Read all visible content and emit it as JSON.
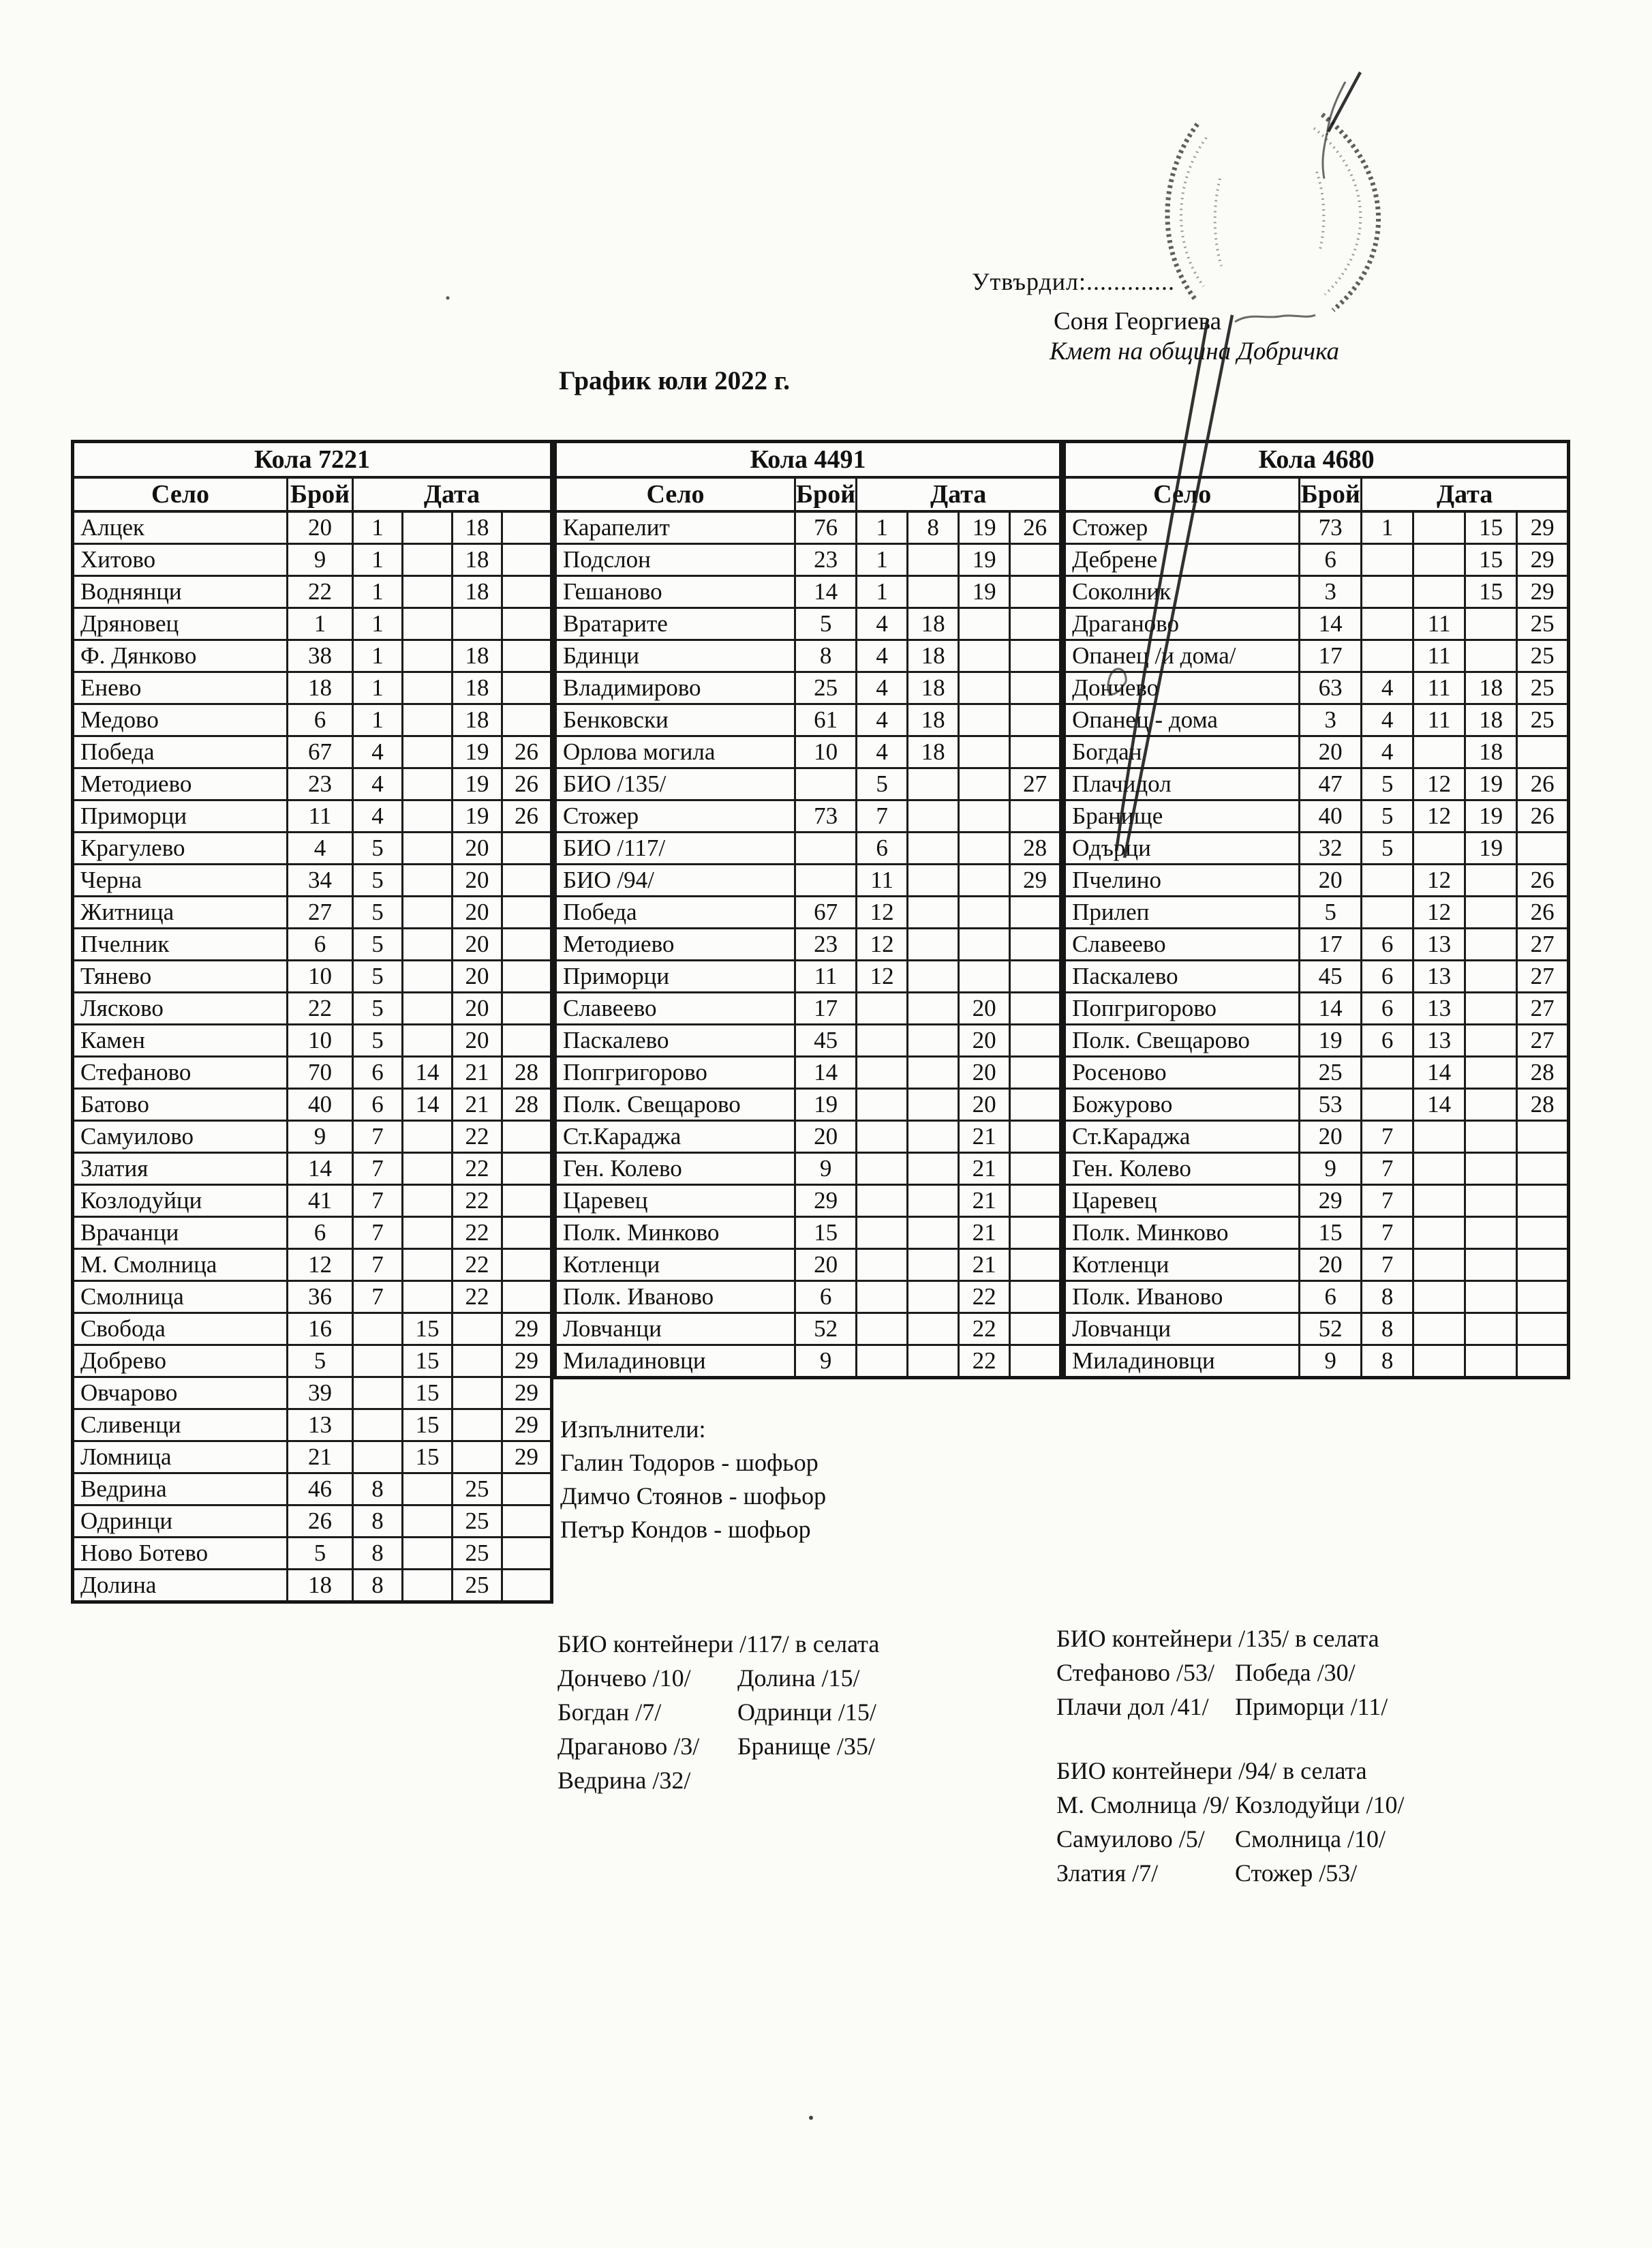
{
  "header": {
    "approve_label": "Утвърдил:.............",
    "approver_name": "Соня Георгиева",
    "approver_title": "Кмет  на община Добричка",
    "title": "График юли 2022 г."
  },
  "colors": {
    "paper": "#fbfbf8",
    "ink": "#111111",
    "table_border": "#1c1c1c"
  },
  "tables": [
    {
      "car": "Кола 7221",
      "columns": {
        "village": "Село",
        "count": "Брой",
        "date": "Дата"
      },
      "rows": [
        {
          "village": "Алцек",
          "count": "20",
          "dates": [
            "1",
            "",
            "18",
            ""
          ]
        },
        {
          "village": "Хитово",
          "count": "9",
          "dates": [
            "1",
            "",
            "18",
            ""
          ]
        },
        {
          "village": "Воднянци",
          "count": "22",
          "dates": [
            "1",
            "",
            "18",
            ""
          ]
        },
        {
          "village": "Дряновец",
          "count": "1",
          "dates": [
            "1",
            "",
            "",
            ""
          ]
        },
        {
          "village": "Ф. Дянково",
          "count": "38",
          "dates": [
            "1",
            "",
            "18",
            ""
          ]
        },
        {
          "village": "Енево",
          "count": "18",
          "dates": [
            "1",
            "",
            "18",
            ""
          ]
        },
        {
          "village": "Медово",
          "count": "6",
          "dates": [
            "1",
            "",
            "18",
            ""
          ]
        },
        {
          "village": "Победа",
          "count": "67",
          "dates": [
            "4",
            "",
            "19",
            "26"
          ]
        },
        {
          "village": "Методиево",
          "count": "23",
          "dates": [
            "4",
            "",
            "19",
            "26"
          ]
        },
        {
          "village": "Приморци",
          "count": "11",
          "dates": [
            "4",
            "",
            "19",
            "26"
          ]
        },
        {
          "village": "Крагулево",
          "count": "4",
          "dates": [
            "5",
            "",
            "20",
            ""
          ]
        },
        {
          "village": "Черна",
          "count": "34",
          "dates": [
            "5",
            "",
            "20",
            ""
          ]
        },
        {
          "village": "Житница",
          "count": "27",
          "dates": [
            "5",
            "",
            "20",
            ""
          ]
        },
        {
          "village": "Пчелник",
          "count": "6",
          "dates": [
            "5",
            "",
            "20",
            ""
          ]
        },
        {
          "village": "Тянево",
          "count": "10",
          "dates": [
            "5",
            "",
            "20",
            ""
          ]
        },
        {
          "village": "Лясково",
          "count": "22",
          "dates": [
            "5",
            "",
            "20",
            ""
          ]
        },
        {
          "village": "Камен",
          "count": "10",
          "dates": [
            "5",
            "",
            "20",
            ""
          ]
        },
        {
          "village": "Стефаново",
          "count": "70",
          "dates": [
            "6",
            "14",
            "21",
            "28"
          ]
        },
        {
          "village": "Батово",
          "count": "40",
          "dates": [
            "6",
            "14",
            "21",
            "28"
          ]
        },
        {
          "village": "Самуилово",
          "count": "9",
          "dates": [
            "7",
            "",
            "22",
            ""
          ]
        },
        {
          "village": "Златия",
          "count": "14",
          "dates": [
            "7",
            "",
            "22",
            ""
          ]
        },
        {
          "village": "Козлодуйци",
          "count": "41",
          "dates": [
            "7",
            "",
            "22",
            ""
          ]
        },
        {
          "village": "Врачанци",
          "count": "6",
          "dates": [
            "7",
            "",
            "22",
            ""
          ]
        },
        {
          "village": "М. Смолница",
          "count": "12",
          "dates": [
            "7",
            "",
            "22",
            ""
          ]
        },
        {
          "village": "Смолница",
          "count": "36",
          "dates": [
            "7",
            "",
            "22",
            ""
          ]
        },
        {
          "village": "Свобода",
          "count": "16",
          "dates": [
            "",
            "15",
            "",
            "29"
          ]
        },
        {
          "village": "Добрево",
          "count": "5",
          "dates": [
            "",
            "15",
            "",
            "29"
          ]
        },
        {
          "village": "Овчарово",
          "count": "39",
          "dates": [
            "",
            "15",
            "",
            "29"
          ]
        },
        {
          "village": "Сливенци",
          "count": "13",
          "dates": [
            "",
            "15",
            "",
            "29"
          ]
        },
        {
          "village": "Ломница",
          "count": "21",
          "dates": [
            "",
            "15",
            "",
            "29"
          ]
        },
        {
          "village": "Ведрина",
          "count": "46",
          "dates": [
            "8",
            "",
            "25",
            ""
          ]
        },
        {
          "village": "Одринци",
          "count": "26",
          "dates": [
            "8",
            "",
            "25",
            ""
          ]
        },
        {
          "village": "Ново Ботево",
          "count": "5",
          "dates": [
            "8",
            "",
            "25",
            ""
          ]
        },
        {
          "village": "Долина",
          "count": "18",
          "dates": [
            "8",
            "",
            "25",
            ""
          ]
        }
      ]
    },
    {
      "car": "Кола 4491",
      "columns": {
        "village": "Село",
        "count": "Брой",
        "date": "Дата"
      },
      "rows": [
        {
          "village": "Карапелит",
          "count": "76",
          "dates": [
            "1",
            "8",
            "19",
            "26"
          ]
        },
        {
          "village": "Подслон",
          "count": "23",
          "dates": [
            "1",
            "",
            "19",
            ""
          ]
        },
        {
          "village": "Гешаново",
          "count": "14",
          "dates": [
            "1",
            "",
            "19",
            ""
          ]
        },
        {
          "village": "Вратарите",
          "count": "5",
          "dates": [
            "4",
            "18",
            "",
            ""
          ]
        },
        {
          "village": "Бдинци",
          "count": "8",
          "dates": [
            "4",
            "18",
            "",
            ""
          ]
        },
        {
          "village": "Владимирово",
          "count": "25",
          "dates": [
            "4",
            "18",
            "",
            ""
          ]
        },
        {
          "village": "Бенковски",
          "count": "61",
          "dates": [
            "4",
            "18",
            "",
            ""
          ]
        },
        {
          "village": "Орлова могила",
          "count": "10",
          "dates": [
            "4",
            "18",
            "",
            ""
          ]
        },
        {
          "village": "БИО /135/",
          "count": "",
          "dates": [
            "5",
            "",
            "",
            "27"
          ]
        },
        {
          "village": "Стожер",
          "count": "73",
          "dates": [
            "7",
            "",
            "",
            ""
          ]
        },
        {
          "village": "БИО /117/",
          "count": "",
          "dates": [
            "6",
            "",
            "",
            "28"
          ]
        },
        {
          "village": "БИО /94/",
          "count": "",
          "dates": [
            "11",
            "",
            "",
            "29"
          ]
        },
        {
          "village": "Победа",
          "count": "67",
          "dates": [
            "12",
            "",
            "",
            ""
          ]
        },
        {
          "village": "Методиево",
          "count": "23",
          "dates": [
            "12",
            "",
            "",
            ""
          ]
        },
        {
          "village": "Приморци",
          "count": "11",
          "dates": [
            "12",
            "",
            "",
            ""
          ]
        },
        {
          "village": "Славеево",
          "count": "17",
          "dates": [
            "",
            "",
            "20",
            ""
          ]
        },
        {
          "village": "Паскалево",
          "count": "45",
          "dates": [
            "",
            "",
            "20",
            ""
          ]
        },
        {
          "village": "Попгригорово",
          "count": "14",
          "dates": [
            "",
            "",
            "20",
            ""
          ]
        },
        {
          "village": "Полк. Свещарово",
          "count": "19",
          "dates": [
            "",
            "",
            "20",
            ""
          ]
        },
        {
          "village": "Ст.Караджа",
          "count": "20",
          "dates": [
            "",
            "",
            "21",
            ""
          ]
        },
        {
          "village": "Ген. Колево",
          "count": "9",
          "dates": [
            "",
            "",
            "21",
            ""
          ]
        },
        {
          "village": "Царевец",
          "count": "29",
          "dates": [
            "",
            "",
            "21",
            ""
          ]
        },
        {
          "village": "Полк. Минково",
          "count": "15",
          "dates": [
            "",
            "",
            "21",
            ""
          ]
        },
        {
          "village": "Котленци",
          "count": "20",
          "dates": [
            "",
            "",
            "21",
            ""
          ]
        },
        {
          "village": "Полк. Иваново",
          "count": "6",
          "dates": [
            "",
            "",
            "22",
            ""
          ]
        },
        {
          "village": "Ловчанци",
          "count": "52",
          "dates": [
            "",
            "",
            "22",
            ""
          ]
        },
        {
          "village": "Миладиновци",
          "count": "9",
          "dates": [
            "",
            "",
            "22",
            ""
          ]
        }
      ]
    },
    {
      "car": "Кола 4680",
      "columns": {
        "village": "Село",
        "count": "Брой",
        "date": "Дата"
      },
      "rows": [
        {
          "village": "Стожер",
          "count": "73",
          "dates": [
            "1",
            "",
            "15",
            "29"
          ]
        },
        {
          "village": "Дебрене",
          "count": "6",
          "dates": [
            "",
            "",
            "15",
            "29"
          ]
        },
        {
          "village": "Соколник",
          "count": "3",
          "dates": [
            "",
            "",
            "15",
            "29"
          ]
        },
        {
          "village": "Драганово",
          "count": "14",
          "dates": [
            "",
            "11",
            "",
            "25"
          ]
        },
        {
          "village": "Опанец /и дома/",
          "count": "17",
          "dates": [
            "",
            "11",
            "",
            "25"
          ]
        },
        {
          "village": "Дончево",
          "count": "63",
          "dates": [
            "4",
            "11",
            "18",
            "25"
          ]
        },
        {
          "village": "Опанец - дома",
          "count": "3",
          "dates": [
            "4",
            "11",
            "18",
            "25"
          ]
        },
        {
          "village": "Богдан",
          "count": "20",
          "dates": [
            "4",
            "",
            "18",
            ""
          ]
        },
        {
          "village": "Плачидол",
          "count": "47",
          "dates": [
            "5",
            "12",
            "19",
            "26"
          ]
        },
        {
          "village": "Бранище",
          "count": "40",
          "dates": [
            "5",
            "12",
            "19",
            "26"
          ]
        },
        {
          "village": "Одърци",
          "count": "32",
          "dates": [
            "5",
            "",
            "19",
            ""
          ]
        },
        {
          "village": "Пчелино",
          "count": "20",
          "dates": [
            "",
            "12",
            "",
            "26"
          ]
        },
        {
          "village": "Прилеп",
          "count": "5",
          "dates": [
            "",
            "12",
            "",
            "26"
          ]
        },
        {
          "village": "Славеево",
          "count": "17",
          "dates": [
            "6",
            "13",
            "",
            "27"
          ]
        },
        {
          "village": "Паскалево",
          "count": "45",
          "dates": [
            "6",
            "13",
            "",
            "27"
          ]
        },
        {
          "village": "Попгригорово",
          "count": "14",
          "dates": [
            "6",
            "13",
            "",
            "27"
          ]
        },
        {
          "village": "Полк. Свещарово",
          "count": "19",
          "dates": [
            "6",
            "13",
            "",
            "27"
          ]
        },
        {
          "village": "Росеново",
          "count": "25",
          "dates": [
            "",
            "14",
            "",
            "28"
          ]
        },
        {
          "village": "Божурово",
          "count": "53",
          "dates": [
            "",
            "14",
            "",
            "28"
          ]
        },
        {
          "village": "Ст.Караджа",
          "count": "20",
          "dates": [
            "7",
            "",
            "",
            ""
          ]
        },
        {
          "village": "Ген. Колево",
          "count": "9",
          "dates": [
            "7",
            "",
            "",
            ""
          ]
        },
        {
          "village": "Царевец",
          "count": "29",
          "dates": [
            "7",
            "",
            "",
            ""
          ]
        },
        {
          "village": "Полк. Минково",
          "count": "15",
          "dates": [
            "7",
            "",
            "",
            ""
          ]
        },
        {
          "village": "Котленци",
          "count": "20",
          "dates": [
            "7",
            "",
            "",
            ""
          ]
        },
        {
          "village": "Полк. Иваново",
          "count": "6",
          "dates": [
            "8",
            "",
            "",
            ""
          ]
        },
        {
          "village": "Ловчанци",
          "count": "52",
          "dates": [
            "8",
            "",
            "",
            ""
          ]
        },
        {
          "village": "Миладиновци",
          "count": "9",
          "dates": [
            "8",
            "",
            "",
            ""
          ]
        }
      ]
    }
  ],
  "executors": {
    "title": "Изпълнители:",
    "names": [
      "Галин Тодоров - шофьор",
      "Димчо Стоянов - шофьор",
      "Петър Кондов - шофьор"
    ]
  },
  "bio_sections": [
    {
      "title": "БИО контейнери /117/ в селата",
      "pairs": [
        [
          "Дончево /10/",
          "Долина /15/"
        ],
        [
          "Богдан /7/",
          "Одринци /15/"
        ],
        [
          "Драганово /3/",
          "Бранище /35/"
        ],
        [
          "Ведрина /32/",
          ""
        ]
      ]
    },
    {
      "title": "БИО контейнери /135/ в селата",
      "pairs": [
        [
          "Стефаново /53/",
          "Победа /30/"
        ],
        [
          "Плачи дол /41/",
          "Приморци /11/"
        ]
      ]
    },
    {
      "title": "БИО контейнери /94/ в селата",
      "pairs": [
        [
          "М. Смолница /9/",
          "Козлодуйци /10/"
        ],
        [
          "Самуилово /5/",
          "Смолница /10/"
        ],
        [
          "Златия /7/",
          "Стожер /53/"
        ]
      ]
    }
  ]
}
